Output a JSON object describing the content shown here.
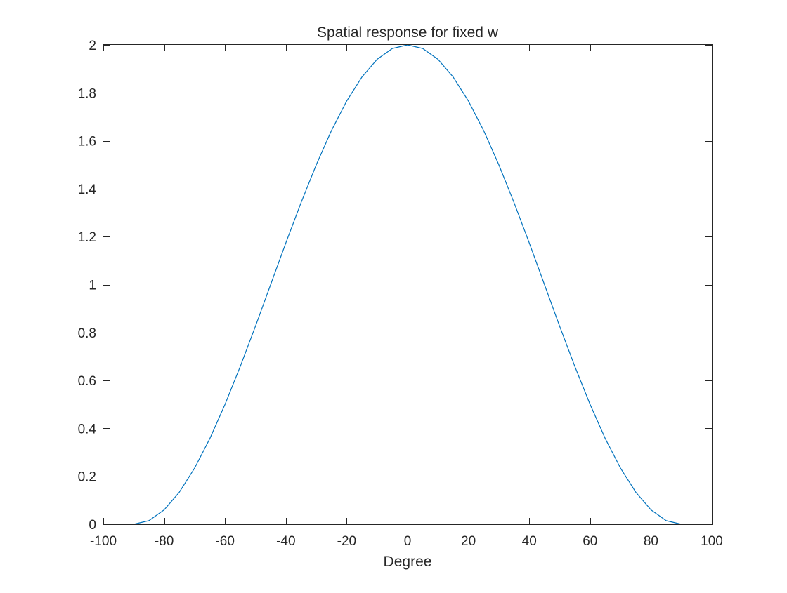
{
  "chart_data": {
    "type": "line",
    "title": "Spatial response for fixed w",
    "xlabel": "Degree",
    "ylabel": "",
    "xlim": [
      -100,
      100
    ],
    "ylim": [
      0,
      2
    ],
    "xticks": [
      -100,
      -80,
      -60,
      -40,
      -20,
      0,
      20,
      40,
      60,
      80,
      100
    ],
    "yticks": [
      0,
      0.2,
      0.4,
      0.6,
      0.8,
      1,
      1.2,
      1.4,
      1.6,
      1.8,
      2
    ],
    "xtick_labels": [
      "-100",
      "-80",
      "-60",
      "-40",
      "-20",
      "0",
      "20",
      "40",
      "60",
      "80",
      "100"
    ],
    "ytick_labels": [
      "0",
      "0.2",
      "0.4",
      "0.6",
      "0.8",
      "1",
      "1.2",
      "1.4",
      "1.6",
      "1.8",
      "2"
    ],
    "grid": false,
    "box": true,
    "series": [
      {
        "color": "#0072BD",
        "x": [
          -90,
          -85,
          -80,
          -75,
          -70,
          -65,
          -60,
          -55,
          -50,
          -45,
          -40,
          -35,
          -30,
          -25,
          -20,
          -15,
          -10,
          -5,
          0,
          5,
          10,
          15,
          20,
          25,
          30,
          35,
          40,
          45,
          50,
          55,
          60,
          65,
          70,
          75,
          80,
          85,
          90
        ],
        "y": [
          0,
          0.015,
          0.06,
          0.134,
          0.234,
          0.357,
          0.5,
          0.658,
          0.826,
          1.0,
          1.174,
          1.342,
          1.5,
          1.643,
          1.766,
          1.866,
          1.94,
          1.985,
          2.0,
          1.985,
          1.94,
          1.866,
          1.766,
          1.643,
          1.5,
          1.342,
          1.174,
          1.0,
          0.826,
          0.658,
          0.5,
          0.357,
          0.234,
          0.134,
          0.06,
          0.015,
          0
        ]
      }
    ]
  }
}
